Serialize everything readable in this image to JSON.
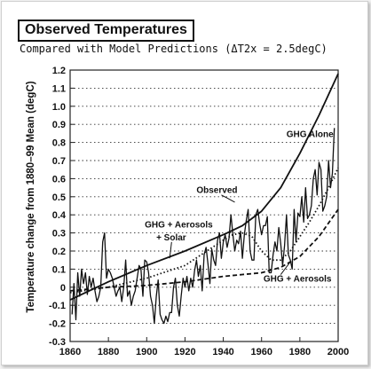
{
  "chart_data": {
    "type": "line",
    "title": "Observed Temperatures",
    "subtitle": "Compared with Model Predictions (ΔT2x = 2.5degC)",
    "xlabel": "",
    "ylabel": "Temperature change from 1880–99 Mean (degC)",
    "xlim": [
      1860,
      2000
    ],
    "ylim": [
      -0.3,
      1.2
    ],
    "x_ticks": [
      1860,
      1880,
      1900,
      1920,
      1940,
      1960,
      1980,
      2000
    ],
    "y_ticks": [
      -0.3,
      -0.2,
      -0.1,
      0,
      0.1,
      0.2,
      0.3,
      0.4,
      0.5,
      0.6,
      0.7,
      0.8,
      0.9,
      1.0,
      1.1,
      1.2
    ],
    "grid": "horizontal dotted",
    "series": [
      {
        "name": "GHG Alone",
        "style": "solid-thick",
        "x": [
          1860,
          1880,
          1900,
          1920,
          1940,
          1950,
          1960,
          1970,
          1980,
          1990,
          2000
        ],
        "values": [
          -0.07,
          0.03,
          0.12,
          0.2,
          0.29,
          0.34,
          0.42,
          0.55,
          0.74,
          0.95,
          1.18
        ]
      },
      {
        "name": "GHG + Aerosols + Solar",
        "style": "dotted",
        "x": [
          1860,
          1880,
          1900,
          1920,
          1930,
          1940,
          1945,
          1950,
          1955,
          1960,
          1965,
          1970,
          1975,
          1980,
          1985,
          1990,
          1995,
          2000
        ],
        "values": [
          -0.03,
          0.0,
          0.05,
          0.12,
          0.19,
          0.26,
          0.29,
          0.3,
          0.28,
          0.2,
          0.15,
          0.15,
          0.2,
          0.28,
          0.36,
          0.45,
          0.55,
          0.66
        ]
      },
      {
        "name": "GHG + Aerosols",
        "style": "dashed",
        "x": [
          1860,
          1880,
          1900,
          1920,
          1940,
          1950,
          1960,
          1970,
          1980,
          1990,
          2000
        ],
        "values": [
          -0.02,
          0.0,
          0.01,
          0.03,
          0.06,
          0.07,
          0.08,
          0.11,
          0.17,
          0.28,
          0.43
        ]
      },
      {
        "name": "Observed",
        "style": "solid-thin",
        "x": [
          1861,
          1862,
          1863,
          1864,
          1865,
          1866,
          1867,
          1868,
          1869,
          1870,
          1871,
          1872,
          1873,
          1874,
          1875,
          1876,
          1877,
          1878,
          1879,
          1880,
          1881,
          1882,
          1883,
          1884,
          1885,
          1886,
          1887,
          1888,
          1889,
          1890,
          1891,
          1892,
          1893,
          1894,
          1895,
          1896,
          1897,
          1898,
          1899,
          1900,
          1901,
          1902,
          1903,
          1904,
          1905,
          1906,
          1907,
          1908,
          1909,
          1910,
          1911,
          1912,
          1913,
          1914,
          1915,
          1916,
          1917,
          1918,
          1919,
          1920,
          1921,
          1922,
          1923,
          1924,
          1925,
          1926,
          1927,
          1928,
          1929,
          1930,
          1931,
          1932,
          1933,
          1934,
          1935,
          1936,
          1937,
          1938,
          1939,
          1940,
          1941,
          1942,
          1943,
          1944,
          1945,
          1946,
          1947,
          1948,
          1949,
          1950,
          1951,
          1952,
          1953,
          1954,
          1955,
          1956,
          1957,
          1958,
          1959,
          1960,
          1961,
          1962,
          1963,
          1964,
          1965,
          1966,
          1967,
          1968,
          1969,
          1970,
          1971,
          1972,
          1973,
          1974,
          1975,
          1976,
          1977,
          1978,
          1979,
          1980,
          1981,
          1982,
          1983,
          1984,
          1985,
          1986,
          1987,
          1988,
          1989,
          1990,
          1991,
          1992,
          1993,
          1994,
          1995,
          1996,
          1997,
          1998
        ],
        "values": [
          -0.15,
          0.02,
          -0.18,
          0.08,
          -0.05,
          0.1,
          0.02,
          0.08,
          -0.04,
          0.06,
          0.0,
          0.05,
          -0.02,
          -0.08,
          -0.05,
          0.0,
          0.25,
          0.3,
          0.05,
          0.1,
          0.08,
          0.05,
          0.0,
          -0.05,
          -0.02,
          0.0,
          -0.08,
          0.0,
          0.15,
          -0.05,
          -0.02,
          -0.1,
          -0.05,
          -0.02,
          0.05,
          0.12,
          0.1,
          -0.05,
          0.15,
          0.14,
          0.08,
          -0.05,
          -0.1,
          -0.2,
          -0.05,
          0.04,
          -0.15,
          -0.18,
          -0.2,
          -0.16,
          -0.19,
          -0.14,
          -0.14,
          0.0,
          0.05,
          -0.1,
          -0.16,
          -0.05,
          0.05,
          0.0,
          0.06,
          -0.02,
          0.05,
          0.0,
          0.09,
          0.15,
          0.06,
          0.12,
          -0.02,
          0.18,
          0.22,
          0.13,
          0.02,
          0.21,
          0.15,
          0.12,
          0.26,
          0.3,
          0.16,
          0.25,
          0.29,
          0.22,
          0.27,
          0.4,
          0.29,
          0.2,
          0.26,
          0.24,
          0.31,
          0.16,
          0.29,
          0.37,
          0.43,
          0.2,
          0.15,
          0.15,
          0.4,
          0.43,
          0.35,
          0.29,
          0.34,
          0.34,
          0.39,
          0.08,
          0.08,
          0.18,
          0.25,
          0.2,
          0.33,
          0.24,
          0.12,
          0.23,
          0.4,
          0.18,
          0.15,
          0.1,
          0.43,
          0.25,
          0.41,
          0.39,
          0.5,
          0.36,
          0.55,
          0.38,
          0.4,
          0.45,
          0.6,
          0.65,
          0.51,
          0.69,
          0.65,
          0.42,
          0.45,
          0.5,
          0.7,
          0.55,
          0.63,
          0.88
        ]
      }
    ],
    "annotations": [
      {
        "text": "GHG Alone"
      },
      {
        "text": "Observed"
      },
      {
        "text": "GHG + Aerosols"
      },
      {
        "text": "+ Solar"
      },
      {
        "text": "GHG + Aerosols"
      }
    ]
  }
}
